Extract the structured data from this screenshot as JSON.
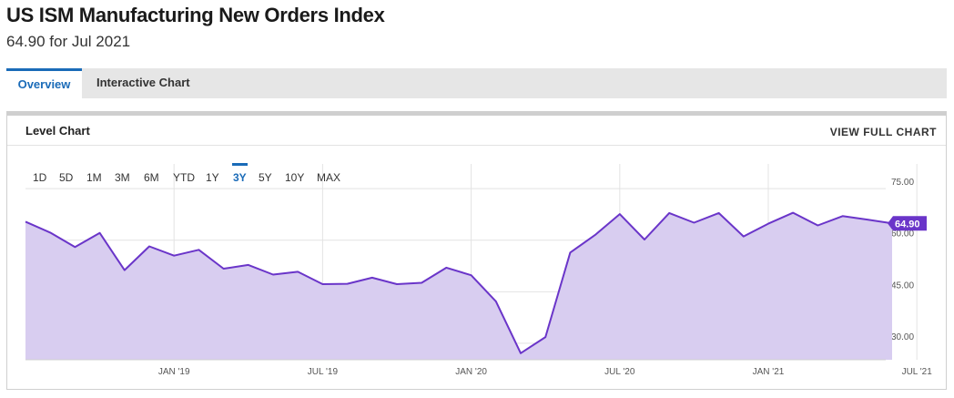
{
  "header": {
    "title": "US ISM Manufacturing New Orders Index",
    "subtitle": "64.90 for Jul 2021"
  },
  "tabs": [
    {
      "label": "Overview",
      "active": true
    },
    {
      "label": "Interactive Chart",
      "active": false
    }
  ],
  "panel": {
    "title": "Level Chart",
    "view_full_label": "VIEW FULL CHART"
  },
  "ranges": [
    "1D",
    "5D",
    "1M",
    "3M",
    "6M",
    "YTD",
    "1Y",
    "3Y",
    "5Y",
    "10Y",
    "MAX"
  ],
  "active_range": "3Y",
  "colors": {
    "line": "#6a35c9",
    "fill": "#d8cdf0",
    "accent": "#1a6bb8",
    "label_bg": "#6a35c9"
  },
  "chart_data": {
    "type": "area",
    "last_value_label": "64.90",
    "y_ticks": [
      "30.00",
      "45.00",
      "60.00",
      "75.00"
    ],
    "y_tick_values": [
      30,
      45,
      60,
      75
    ],
    "ylim": [
      25.2,
      82.2
    ],
    "x_tick_labels": [
      "JAN '19",
      "JUL '19",
      "JAN '20",
      "JUL '20",
      "JAN '21",
      "JUL '21"
    ],
    "x_tick_months": [
      7,
      13,
      19,
      25,
      31,
      37
    ],
    "months": [
      "Aug 2018",
      "Sep 2018",
      "Oct 2018",
      "Nov 2018",
      "Dec 2018",
      "Jan 2019",
      "Feb 2019",
      "Mar 2019",
      "Apr 2019",
      "May 2019",
      "Jun 2019",
      "Jul 2019",
      "Aug 2019",
      "Sep 2019",
      "Oct 2019",
      "Nov 2019",
      "Dec 2019",
      "Jan 2020",
      "Feb 2020",
      "Mar 2020",
      "Apr 2020",
      "May 2020",
      "Jun 2020",
      "Jul 2020",
      "Aug 2020",
      "Sep 2020",
      "Oct 2020",
      "Nov 2020",
      "Dec 2020",
      "Jan 2021",
      "Feb 2021",
      "Mar 2021",
      "Apr 2021",
      "May 2021",
      "Jun 2021",
      "Jul 2021"
    ],
    "values": [
      65.4,
      62.2,
      58.0,
      62.1,
      51.3,
      58.2,
      55.5,
      57.2,
      51.7,
      52.8,
      50.0,
      50.8,
      47.2,
      47.3,
      49.1,
      47.2,
      47.6,
      52.0,
      49.8,
      42.2,
      27.1,
      31.8,
      56.4,
      61.5,
      67.6,
      60.2,
      67.9,
      65.1,
      67.9,
      61.1,
      64.8,
      68.0,
      64.3,
      67.0,
      66.0,
      64.9
    ],
    "grid": true,
    "legend": "none"
  }
}
